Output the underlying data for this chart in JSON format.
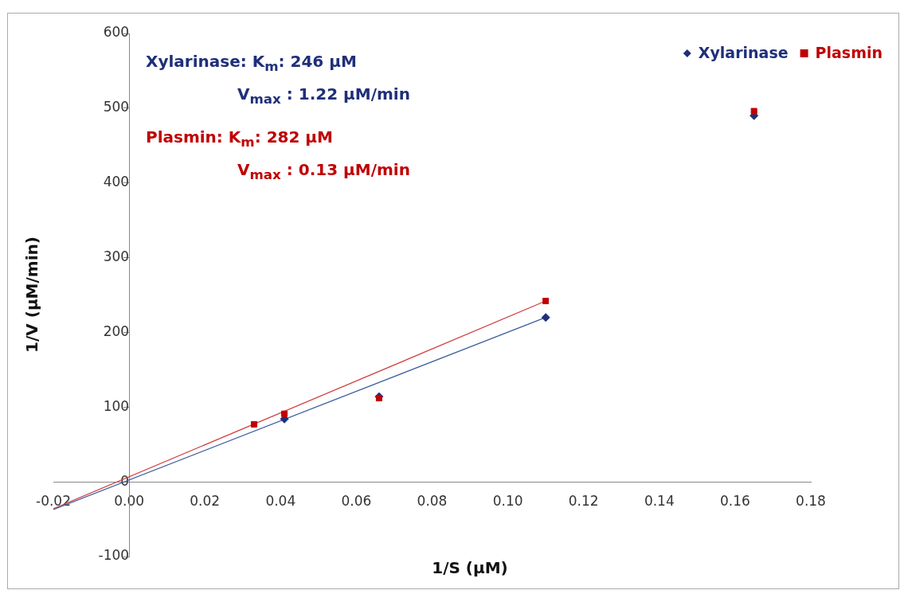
{
  "chart_data": {
    "type": "scatter",
    "xlabel": "1/S (µM)",
    "ylabel": "1/V (µM/min)",
    "xlim": [
      -0.02,
      0.18
    ],
    "xticks": [
      {
        "value": -0.02,
        "label": "-0.02"
      },
      {
        "value": 0,
        "label": "0.00"
      },
      {
        "value": 0.02,
        "label": "0.02"
      },
      {
        "value": 0.04,
        "label": "0.04"
      },
      {
        "value": 0.06,
        "label": "0.06"
      },
      {
        "value": 0.08,
        "label": "0.08"
      },
      {
        "value": 0.1,
        "label": "0.10"
      },
      {
        "value": 0.12,
        "label": "0.12"
      },
      {
        "value": 0.14,
        "label": "0.14"
      },
      {
        "value": 0.16,
        "label": "0.16"
      },
      {
        "value": 0.18,
        "label": "0.18"
      }
    ],
    "ylim": [
      -100,
      600
    ],
    "yticks": [
      -100,
      0,
      100,
      200,
      300,
      400,
      500,
      600
    ],
    "legend": "top right",
    "series": [
      {
        "name": "Xylarinase",
        "color": "#1f2f7a",
        "marker": "diamond",
        "x": [
          0.041,
          0.066,
          0.11,
          0.165
        ],
        "values": [
          84,
          114,
          220,
          490
        ]
      },
      {
        "name": "Plasmin",
        "color": "#c00000",
        "marker": "square",
        "x": [
          0.033,
          0.041,
          0.066,
          0.11,
          0.165
        ],
        "values": [
          77,
          91,
          112,
          242,
          496
        ]
      },
      {
        "type": "line",
        "color": "#3f5f9f",
        "x": [
          -0.02,
          0.11
        ],
        "values": [
          -37,
          220
        ]
      },
      {
        "type": "line",
        "color": "#d04040",
        "x": [
          -0.02,
          0.11
        ],
        "values": [
          -36,
          242
        ]
      }
    ],
    "annotations": [
      "Xylarinase: K$_{m}$: 246  µM\nV$_{max}$ : 1.22 µM/min",
      "Plasmin: K$_{m}$: 282 µM\nV$_{max}$ : 0.13  µM/min"
    ]
  }
}
